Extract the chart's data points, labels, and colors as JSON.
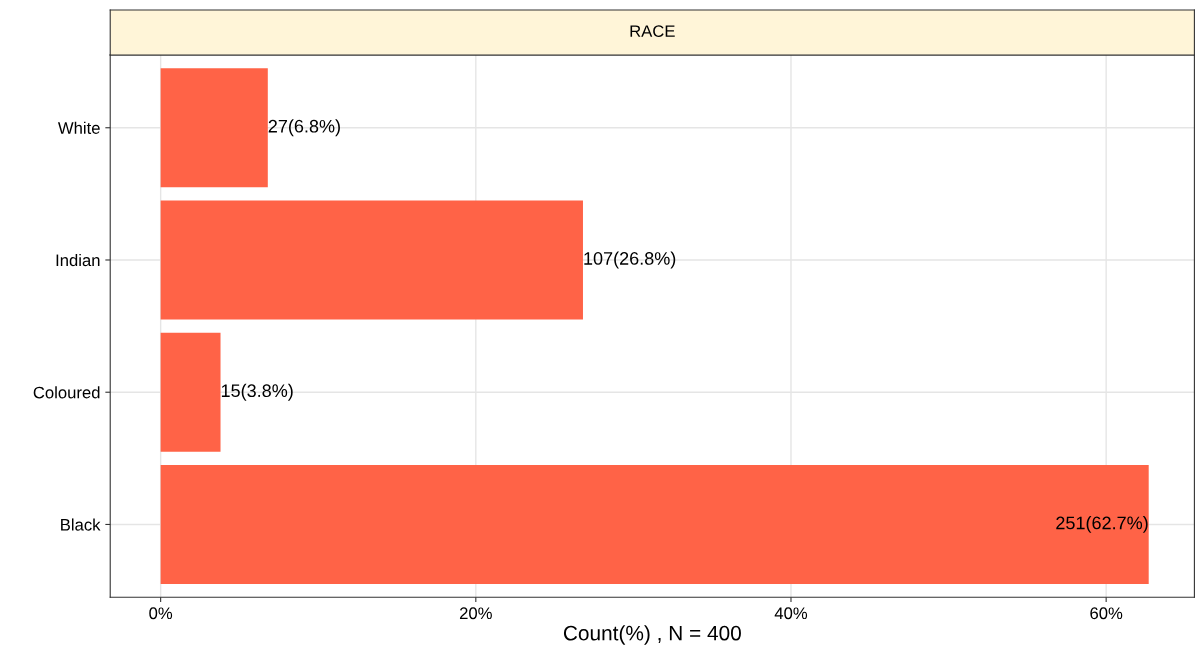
{
  "chart_data": {
    "type": "bar",
    "orientation": "horizontal",
    "title": "RACE",
    "xlabel": "Count(%) , N = 400",
    "categories": [
      "White",
      "Indian",
      "Coloured",
      "Black"
    ],
    "values": [
      6.8,
      26.8,
      3.8,
      62.7
    ],
    "value_labels": [
      "27(6.8%)",
      "107(26.8%)",
      "15(3.8%)",
      "251(62.7%)"
    ],
    "color": "#ff6347",
    "xlim": [
      -3.2,
      65.6
    ],
    "xticks": [
      {
        "value": 0,
        "label": "0%"
      },
      {
        "value": 20,
        "label": "20%"
      },
      {
        "value": 40,
        "label": "40%"
      },
      {
        "value": 60,
        "label": "60%"
      }
    ],
    "grid": true
  }
}
